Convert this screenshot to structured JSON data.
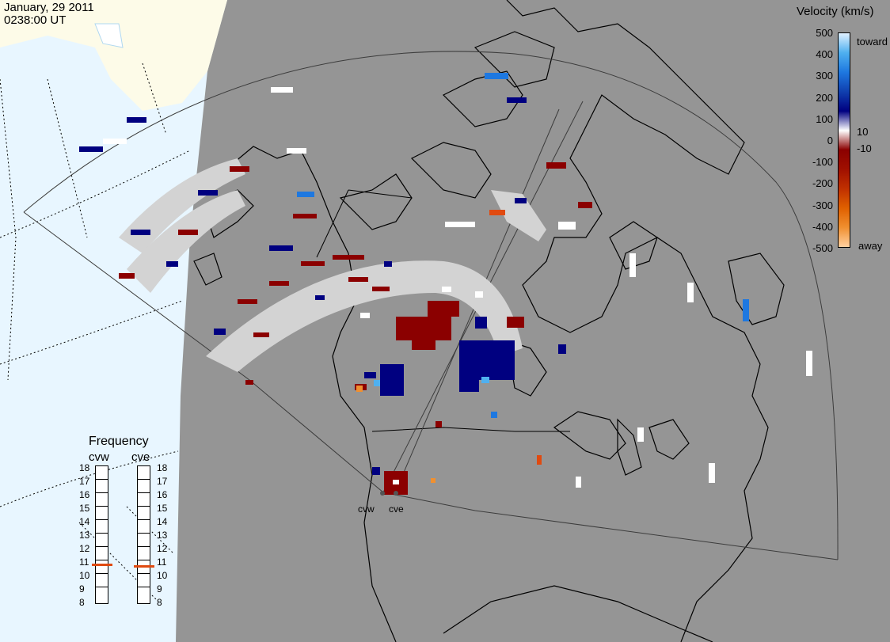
{
  "header": {
    "date": "January, 29 2011",
    "time": "0238:00 UT"
  },
  "velocity_scale": {
    "title": "Velocity (km/s)",
    "ticks": [
      "500",
      "400",
      "300",
      "200",
      "100",
      "10",
      "0",
      "-10",
      "-100",
      "-200",
      "-300",
      "-400",
      "-500"
    ],
    "toward_label": "toward",
    "away_label": "away",
    "colors": [
      "#e0f0ff",
      "#4fb0f0",
      "#1e78e0",
      "#1040b0",
      "#000080",
      "#ffffff",
      "#8b0000",
      "#a01000",
      "#c03000",
      "#e06000",
      "#f09030",
      "#ffd0a0"
    ]
  },
  "frequency_panel": {
    "title": "Frequency",
    "radars": [
      {
        "label": "cvw",
        "value": 10.8
      },
      {
        "label": "cve",
        "value": 10.7
      }
    ],
    "ticks": [
      "18",
      "17",
      "16",
      "15",
      "14",
      "13",
      "12",
      "11",
      "10",
      "9",
      "8"
    ]
  },
  "stations": [
    {
      "label": "cvw"
    },
    {
      "label": "cve"
    }
  ],
  "colors": {
    "background_map": "#959595",
    "ocean": "#e8f6ff",
    "land_unlit": "#fdfbe8",
    "scatter_ground": "#d3d3d3",
    "away_dark": "#8b0000",
    "toward_dark": "#000080",
    "toward_mid": "#1e78e0",
    "frequency_marker": "#e04a10"
  }
}
